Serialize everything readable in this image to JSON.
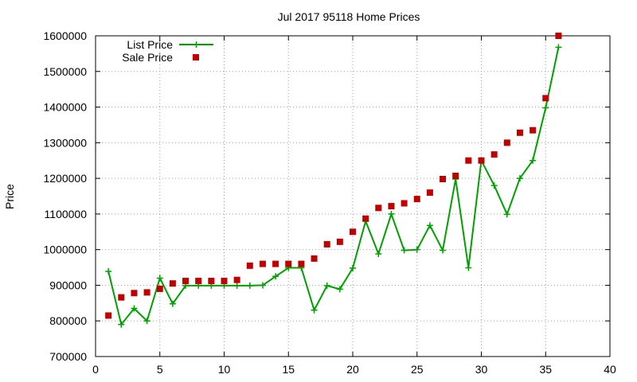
{
  "chart_data": {
    "type": "line",
    "title": "Jul 2017 95118 Home Prices",
    "xlabel": "",
    "ylabel": "Price",
    "xlim": [
      0,
      40
    ],
    "ylim": [
      700000,
      1600000
    ],
    "x_ticks": [
      "0",
      "5",
      "10",
      "15",
      "20",
      "25",
      "30",
      "35",
      "40"
    ],
    "y_ticks": [
      "700000",
      "800000",
      "900000",
      "1000000",
      "1100000",
      "1200000",
      "1300000",
      "1400000",
      "1500000",
      "1600000"
    ],
    "grid": true,
    "legend_position": "top-left",
    "x": [
      1,
      2,
      3,
      4,
      5,
      6,
      7,
      8,
      9,
      10,
      11,
      12,
      13,
      14,
      15,
      16,
      17,
      18,
      19,
      20,
      21,
      22,
      23,
      24,
      25,
      26,
      27,
      28,
      29,
      30,
      31,
      32,
      33,
      34,
      35,
      36
    ],
    "series": [
      {
        "name": "List Price",
        "style": "line+cross",
        "color": "#00a000",
        "values": [
          939000,
          790000,
          835000,
          800000,
          920000,
          848000,
          899000,
          899000,
          899000,
          899000,
          899000,
          899000,
          900000,
          925000,
          949000,
          949000,
          830000,
          899000,
          889000,
          948000,
          1080000,
          988000,
          1100000,
          998000,
          1000000,
          1068000,
          998000,
          1198000,
          949000,
          1250000,
          1180000,
          1099000,
          1200000,
          1250000,
          1398000,
          1568000
        ]
      },
      {
        "name": "Sale Price",
        "style": "square",
        "color": "#c00000",
        "values": [
          815000,
          866000,
          878000,
          880000,
          890000,
          905000,
          912000,
          912000,
          912000,
          912000,
          915000,
          955000,
          960000,
          960000,
          960000,
          960000,
          975000,
          1015000,
          1022000,
          1050000,
          1087000,
          1117000,
          1122000,
          1130000,
          1142000,
          1160000,
          1198000,
          1207000,
          1250000,
          1250000,
          1267000,
          1300000,
          1328000,
          1335000,
          1425000,
          1600000
        ]
      }
    ]
  }
}
